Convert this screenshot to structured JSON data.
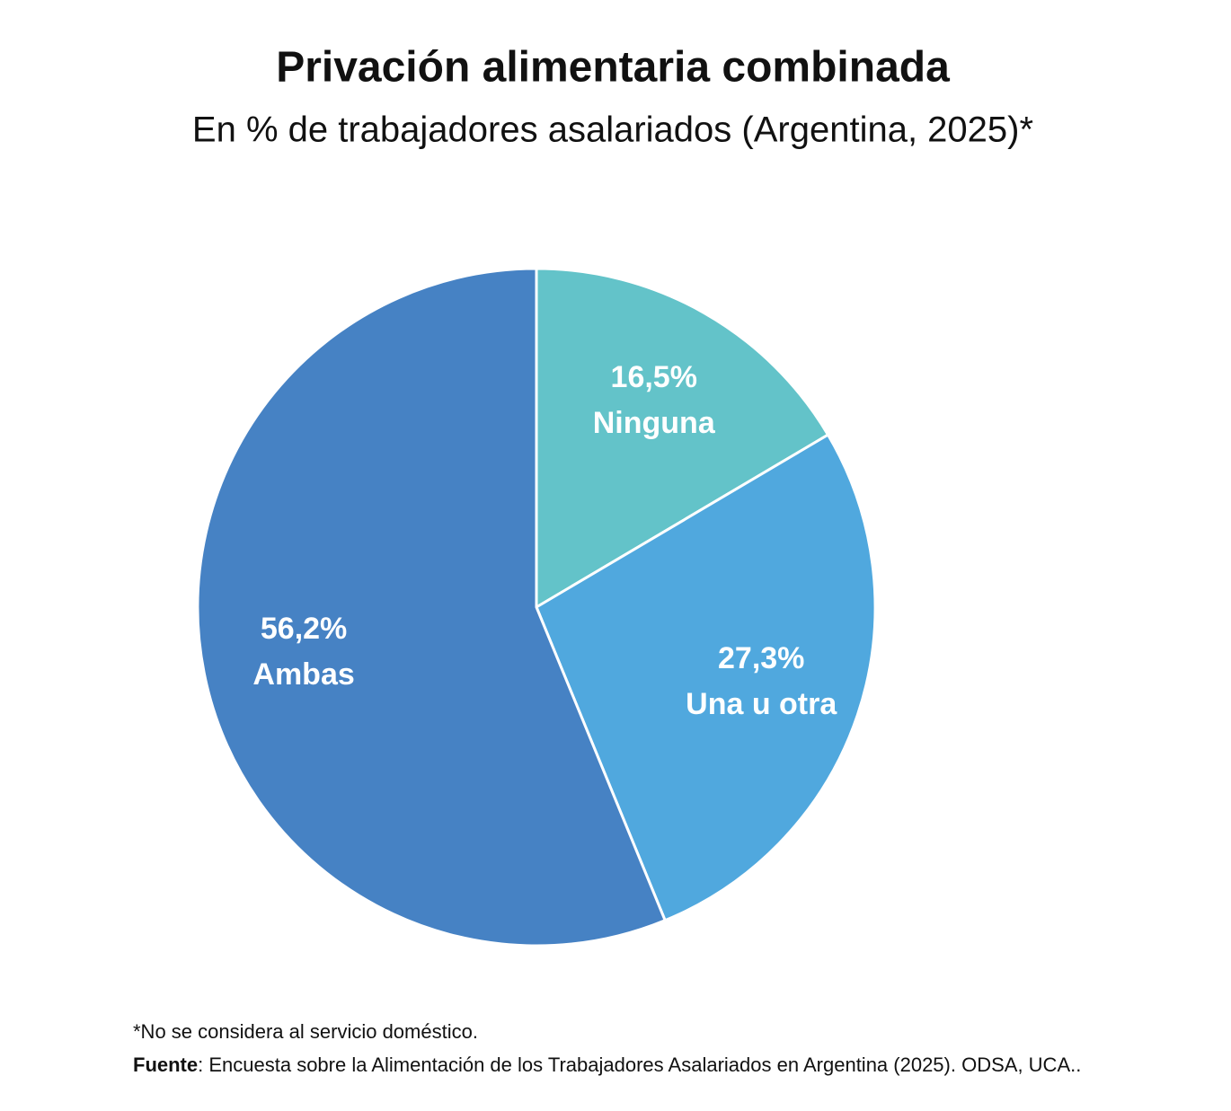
{
  "chart_data": {
    "type": "pie",
    "title": "Privación alimentaria combinada",
    "subtitle": "En % de trabajadores asalariados (Argentina, 2025)*",
    "categories": [
      "Ninguna",
      "Una u otra",
      "Ambas"
    ],
    "values": [
      16.5,
      27.3,
      56.2
    ],
    "value_labels": [
      "16,5%",
      "27,3%",
      "56,2%"
    ],
    "colors": [
      "#63c3c9",
      "#50a8de",
      "#4682c4"
    ],
    "footnote": "*No se considera al servicio doméstico.",
    "source_label": "Fuente",
    "source_text": ": Encuesta sobre la Alimentación de los Trabajadores Asalariados en Argentina (2025). ODSA, UCA.."
  }
}
